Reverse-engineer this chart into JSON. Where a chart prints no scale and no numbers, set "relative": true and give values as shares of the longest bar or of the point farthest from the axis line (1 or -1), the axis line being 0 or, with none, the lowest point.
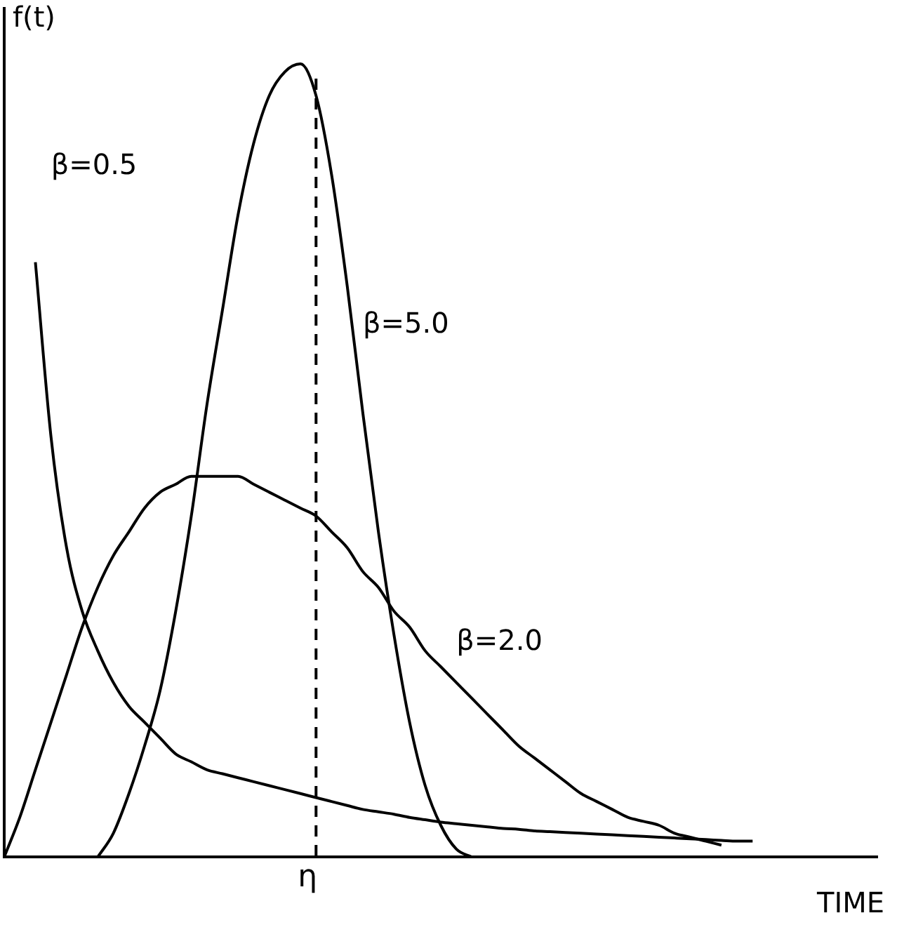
{
  "chart_data": {
    "type": "line",
    "relative": true,
    "xlabel": "TIME",
    "ylabel": "f(t)",
    "legend": false,
    "grid": false,
    "marker": "none",
    "line_style": "solid",
    "categories": [
      null,
      null,
      null,
      null,
      null,
      null,
      null,
      null,
      null,
      null,
      null,
      null,
      null,
      null,
      null,
      null,
      null,
      null,
      null,
      null,
      null,
      null,
      null,
      null,
      null,
      null,
      null,
      null,
      null,
      null,
      null,
      null,
      null,
      null,
      null,
      null,
      null,
      null,
      null,
      null,
      null,
      null,
      null,
      null,
      null,
      null,
      null,
      null,
      null,
      null,
      null,
      null,
      null,
      null,
      null,
      null,
      null
    ],
    "annotations": [
      "η"
    ],
    "series": [
      {
        "name": "β=0.5",
        "color": "#000000",
        "values": [
          null,
          null,
          0.75,
          0.53,
          0.39,
          0.31,
          0.26,
          0.22,
          0.19,
          0.17,
          0.15,
          0.13,
          0.12,
          0.11,
          0.105,
          0.1,
          0.095,
          0.09,
          0.085,
          0.08,
          0.075,
          0.07,
          0.065,
          0.06,
          0.057,
          0.054,
          0.05,
          0.047,
          0.044,
          0.042,
          0.04,
          0.038,
          0.036,
          0.035,
          0.033,
          0.032,
          0.031,
          0.03,
          0.029,
          0.028,
          0.027,
          0.026,
          0.025,
          0.024,
          0.023,
          0.022,
          0.021,
          0.02,
          0.02,
          null,
          null,
          null,
          null,
          null,
          null,
          null,
          null
        ]
      },
      {
        "name": "β=5.0",
        "color": "#000000",
        "values": [
          null,
          null,
          null,
          null,
          null,
          null,
          0,
          0.03,
          0.08,
          0.14,
          0.21,
          0.31,
          0.43,
          0.57,
          0.69,
          0.81,
          0.9,
          0.96,
          0.99,
          1,
          0.96,
          0.86,
          0.72,
          0.56,
          0.41,
          0.28,
          0.17,
          0.09,
          0.04,
          0.01,
          0,
          null,
          null,
          null,
          null,
          null,
          null,
          null,
          null,
          null,
          null,
          null,
          null,
          null,
          null,
          null,
          null,
          null,
          null,
          null,
          null,
          null,
          null,
          null,
          null,
          null,
          null
        ]
      },
      {
        "name": "β=2.0",
        "color": "#000000",
        "values": [
          0,
          0.05,
          0.11,
          0.17,
          0.23,
          0.29,
          0.34,
          0.38,
          0.41,
          0.44,
          0.46,
          0.47,
          0.48,
          0.48,
          0.48,
          0.48,
          0.47,
          0.46,
          0.45,
          0.44,
          0.43,
          0.41,
          0.39,
          0.36,
          0.34,
          0.31,
          0.29,
          0.26,
          0.24,
          0.22,
          0.2,
          0.18,
          0.16,
          0.14,
          0.125,
          0.11,
          0.095,
          0.08,
          0.07,
          0.06,
          0.05,
          0.045,
          0.04,
          0.03,
          0.025,
          0.02,
          0.015,
          null,
          null,
          null,
          null,
          null,
          null,
          null,
          null,
          null,
          null
        ]
      }
    ]
  }
}
